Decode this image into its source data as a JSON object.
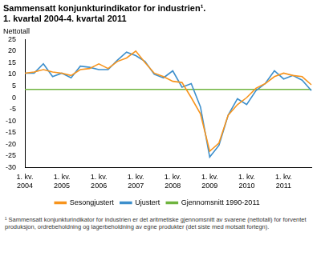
{
  "chart_data": {
    "type": "line",
    "title": "Sammensatt konjunkturindikator for industrien¹.\n1. kvartal 2004-4. kvartal 2011",
    "y_label": "Nettotall",
    "footnote": "¹ Sammensatt konjunkturindikator for industrien er det aritmetiske gjennomsnitt av svarene (nettotall) for forventet produksjon, ordrebeholdning og lagerbeholdning av egne produkter (det siste med motsatt fortegn).",
    "categories": [
      "1. kv.\n2004",
      null,
      null,
      null,
      "1. kv.\n2005",
      null,
      null,
      null,
      "1. kv.\n2006",
      null,
      null,
      null,
      "1. kv.\n2007",
      null,
      null,
      null,
      "1. kv.\n2008",
      null,
      null,
      null,
      "1. kv.\n2009",
      null,
      null,
      null,
      "1. kv.\n2010",
      null,
      null,
      null,
      "1. kv.\n2011",
      null,
      null,
      null
    ],
    "series": [
      {
        "name": "Sesongjustert",
        "color": "#f7941d",
        "values": [
          10.5,
          11,
          12,
          11,
          10.5,
          9.5,
          12,
          12.5,
          14.5,
          12.5,
          15.5,
          17,
          20,
          15,
          10.5,
          9,
          7,
          6.5,
          0,
          -7,
          -23,
          -19.5,
          -7.5,
          -3,
          0,
          4,
          6,
          9,
          10.5,
          9.5,
          9,
          5.5
        ]
      },
      {
        "name": "Ujustert",
        "color": "#3d8fcc",
        "values": [
          10.5,
          10.5,
          14.5,
          9,
          10.5,
          8.5,
          13.5,
          13,
          12,
          12,
          16,
          19.5,
          18,
          15.5,
          10,
          8.5,
          11.5,
          4.5,
          6,
          -4,
          -25.5,
          -20.5,
          -7.5,
          -0.5,
          -3,
          3,
          6,
          11.5,
          8,
          9.5,
          7.5,
          3
        ]
      },
      {
        "name": "Gjennomsnitt 1990-2011",
        "color": "#6fb43f",
        "values": [
          3.5,
          3.5,
          3.5,
          3.5,
          3.5,
          3.5,
          3.5,
          3.5,
          3.5,
          3.5,
          3.5,
          3.5,
          3.5,
          3.5,
          3.5,
          3.5,
          3.5,
          3.5,
          3.5,
          3.5,
          3.5,
          3.5,
          3.5,
          3.5,
          3.5,
          3.5,
          3.5,
          3.5,
          3.5,
          3.5,
          3.5,
          3.5
        ]
      }
    ],
    "ylim": [
      -30,
      25
    ],
    "yticks": [
      -30,
      -25,
      -20,
      -15,
      -10,
      -5,
      0,
      5,
      10,
      15,
      20,
      25
    ],
    "grid": false,
    "legend": "bottom"
  }
}
